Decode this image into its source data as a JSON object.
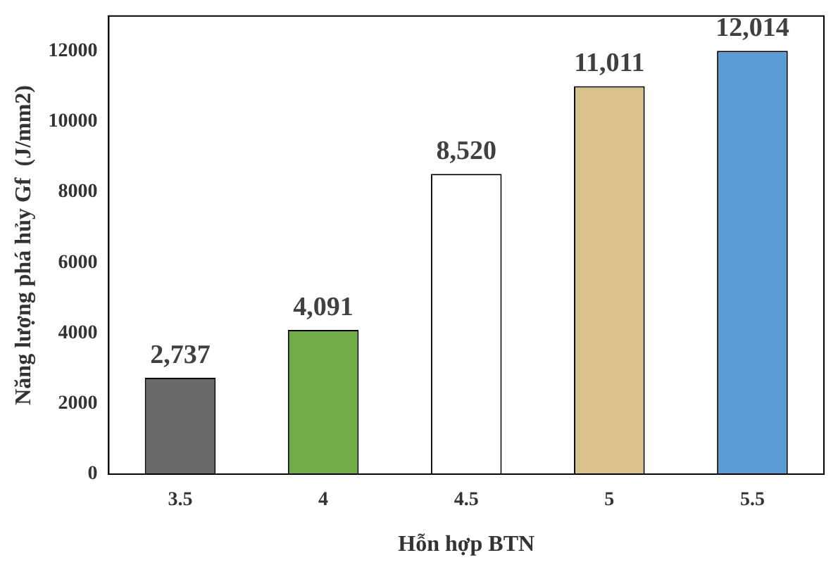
{
  "chart_data": {
    "type": "bar",
    "xlabel": "Hỗn hợp BTN",
    "ylabel": "Năng lượng phá hủy Gf  (J/mm2)",
    "categories": [
      "3.5",
      "4",
      "4.5",
      "5",
      "5.5"
    ],
    "values": [
      2737,
      4091,
      8520,
      11011,
      12014
    ],
    "value_labels": [
      "2,737",
      "4,091",
      "8,520",
      "11,011",
      "12,014"
    ],
    "colors": [
      "#6b6b6b",
      "#70ad47",
      "#ffffff",
      "#d9c38a",
      "#5b9bd5"
    ],
    "ylim": [
      0,
      13000
    ],
    "yticks": [
      0,
      2000,
      4000,
      6000,
      8000,
      10000,
      12000
    ],
    "grid": false,
    "legend": false
  }
}
